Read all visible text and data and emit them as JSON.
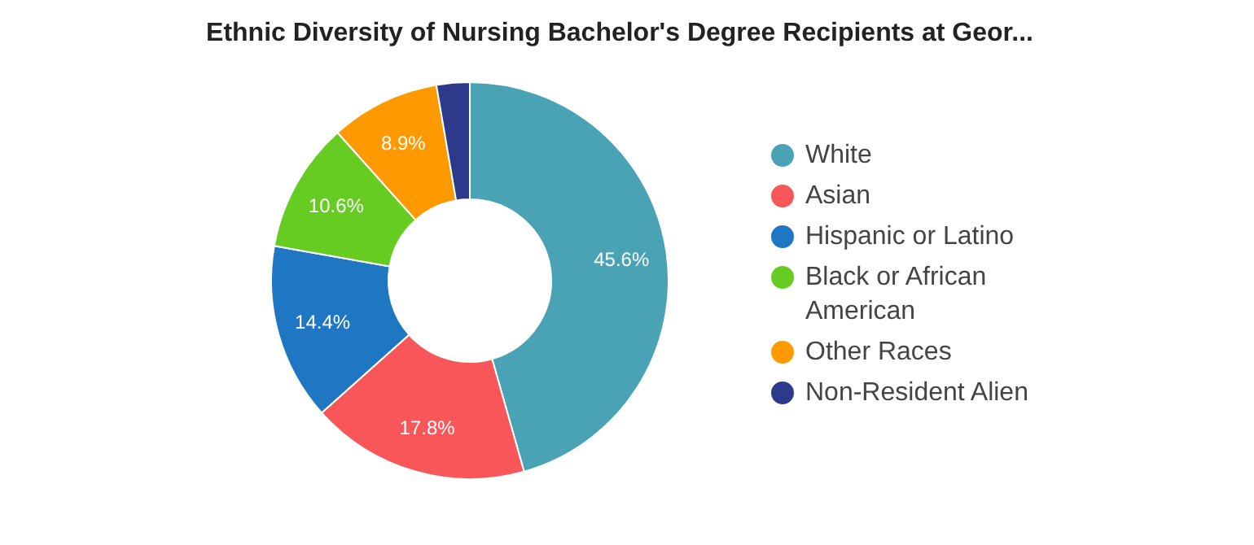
{
  "chart_data": {
    "type": "donut",
    "title": "Ethnic Diversity of Nursing Bachelor's Degree Recipients at Geor...",
    "categories": [
      "White",
      "Asian",
      "Hispanic or Latino",
      "Black or African American",
      "Other Races",
      "Non-Resident Alien"
    ],
    "values": [
      45.6,
      17.8,
      14.4,
      10.6,
      8.9,
      2.7
    ],
    "colors": [
      "#4aa3b5",
      "#f9565a",
      "#1f77c4",
      "#66cc22",
      "#ff9900",
      "#2d3a8c"
    ],
    "value_labels": [
      "45.6%",
      "17.8%",
      "14.4%",
      "10.6%",
      "8.9%",
      null
    ],
    "legend": "right"
  }
}
